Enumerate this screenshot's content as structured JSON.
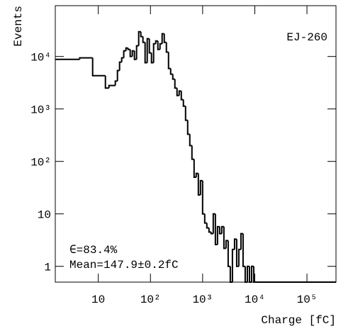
{
  "chart_data": {
    "type": "histogram",
    "xlabel": "Charge [fC]",
    "ylabel": "Events",
    "annotations": [
      "EJ-260",
      "∈=83.4%",
      "Mean=147.9±0.2fC"
    ],
    "color": "#000000",
    "xscale": "log",
    "yscale": "log",
    "grid": false,
    "xlim": [
      1.5,
      360000
    ],
    "ylim": [
      0.5,
      93000
    ],
    "xticks": [
      10,
      {
        "value": 100,
        "label": "10²"
      },
      {
        "value": 1000,
        "label": "10³"
      },
      {
        "value": 10000,
        "label": "10⁴"
      },
      {
        "value": 100000,
        "label": "10⁵"
      }
    ],
    "yticks": [
      1,
      10,
      {
        "value": 100,
        "label": "10²"
      },
      {
        "value": 1000,
        "label": "10³"
      },
      {
        "value": 10000,
        "label": "10⁴"
      }
    ],
    "bins": [
      1.5,
      4.4,
      7.8,
      13.7,
      16,
      21.2,
      23.3,
      25.6,
      28.1,
      30.8,
      33.9,
      37.2,
      40.9,
      44.9,
      49.3,
      54.2,
      59.5,
      65.4,
      71.8,
      78.9,
      86.7,
      95.2,
      104.6,
      114.9,
      126.3,
      138.7,
      152.4,
      167.4,
      183.9,
      202,
      222,
      244,
      268,
      294,
      323,
      355,
      390,
      428,
      471,
      517,
      568,
      624,
      686,
      753,
      828,
      909,
      999,
      1097,
      1205,
      1324,
      1455,
      1598,
      1756,
      1929,
      2119,
      2328,
      2558,
      2810,
      3087,
      3392,
      3726,
      4094,
      4497,
      4941,
      5428,
      5963,
      6551,
      7197,
      7907,
      8687,
      9543,
      10484,
      360000
    ],
    "counts": [
      8800,
      9400,
      4300,
      2500,
      2800,
      3400,
      5400,
      7800,
      9400,
      12800,
      14500,
      13600,
      10000,
      12800,
      8800,
      16000,
      29700,
      23900,
      18600,
      7600,
      21800,
      11700,
      7600,
      17500,
      19800,
      13600,
      17500,
      27100,
      18600,
      12100,
      5900,
      4600,
      3700,
      2500,
      1800,
      2200,
      1500,
      1130,
      610,
      330,
      200,
      110,
      50,
      59,
      23,
      43,
      10,
      6.7,
      5.4,
      4.5,
      4.2,
      10,
      2.6,
      5.7,
      4.2,
      5.7,
      2.2,
      3.1,
      1,
      0,
      2.1,
      3.3,
      1,
      2.1,
      4.2,
      1,
      0,
      1,
      0,
      1,
      0,
      0
    ]
  }
}
